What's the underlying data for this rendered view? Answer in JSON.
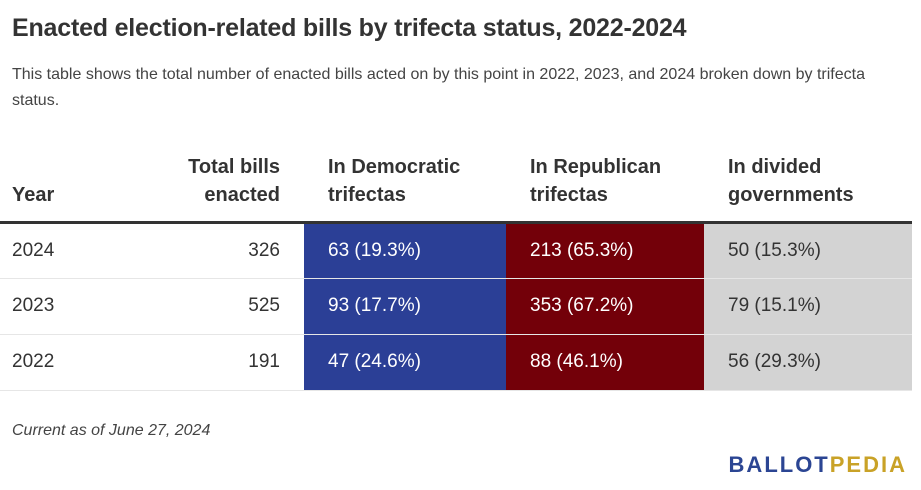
{
  "title": "Enacted election-related bills by trifecta status, 2022-2024",
  "subtitle": "This table shows the total number of enacted bills acted on by this point in 2022, 2023, and 2024 broken down by trifecta status.",
  "note": "Current as of June 27, 2024",
  "logo": {
    "part1": "BALLOT",
    "part2": "PEDIA"
  },
  "colors": {
    "democratic": "#2b3f96",
    "republican": "#730009",
    "divided": "#d3d3d3",
    "logo_blue": "#2b4593",
    "logo_gold": "#c9a227"
  },
  "chart_data": {
    "type": "table",
    "columns": [
      "Year",
      "Total bills enacted",
      "In Democratic trifectas",
      "In Republican trifectas",
      "In divided governments"
    ],
    "rows": [
      {
        "year": "2024",
        "total": "326",
        "dem": "63 (19.3%)",
        "rep": "213 (65.3%)",
        "div": "50 (15.3%)"
      },
      {
        "year": "2023",
        "total": "525",
        "dem": "93 (17.7%)",
        "rep": "353 (67.2%)",
        "div": "79 (15.1%)"
      },
      {
        "year": "2022",
        "total": "191",
        "dem": "47 (24.6%)",
        "rep": "88 (46.1%)",
        "div": "56 (29.3%)"
      }
    ]
  }
}
